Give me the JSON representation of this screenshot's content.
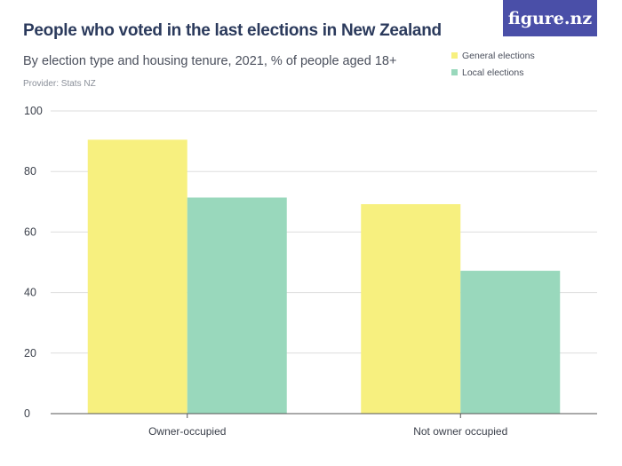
{
  "header": {
    "title": "People who voted in the last elections in New Zealand",
    "subtitle": "By election type and housing tenure, 2021, % of people aged 18+",
    "provider": "Provider: Stats NZ",
    "logo": "figure.nz"
  },
  "colors": {
    "general": "#f7f07f",
    "local": "#99d8bc",
    "grid": "#dddddd",
    "axis": "#555555",
    "brand": "#4a4fa8"
  },
  "chart_data": {
    "type": "bar",
    "categories": [
      "Owner-occupied",
      "Not owner occupied"
    ],
    "series": [
      {
        "name": "General elections",
        "values": [
          90.5,
          69.2
        ]
      },
      {
        "name": "Local elections",
        "values": [
          71.4,
          47.2
        ]
      }
    ],
    "ylim": [
      0,
      100
    ],
    "yticks": [
      0,
      20,
      40,
      60,
      80,
      100
    ],
    "grid": true,
    "legend_position": "top-right",
    "xlabel": "",
    "ylabel": ""
  }
}
